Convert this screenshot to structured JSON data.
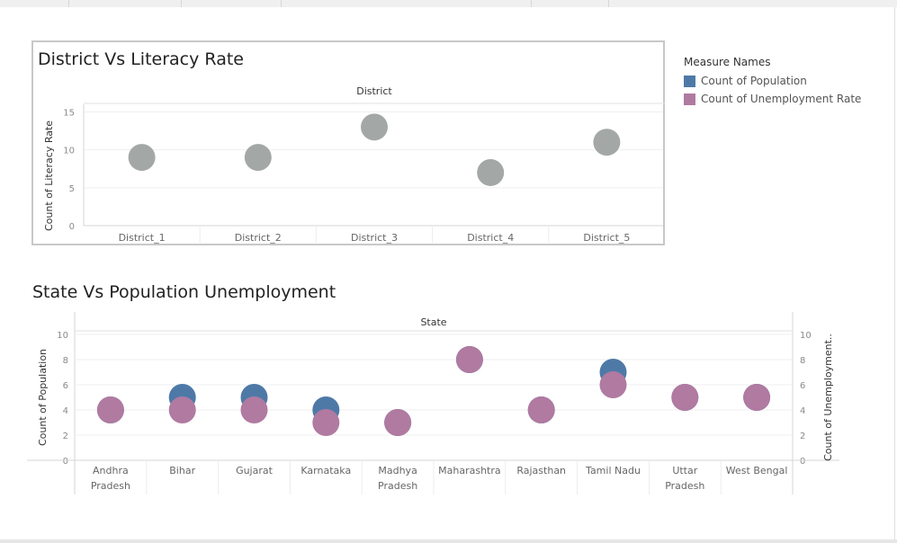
{
  "chart_data": [
    {
      "type": "scatter",
      "title": "District  Vs  Literacy Rate",
      "header": "District",
      "ylabel": "Count of Literacy Rate",
      "categories": [
        "District_1",
        "District_2",
        "District_3",
        "District_4",
        "District_5"
      ],
      "series": [
        {
          "values": [
            9,
            9,
            13,
            7,
            11
          ]
        }
      ],
      "ylim": [
        0,
        16
      ],
      "yticks": [
        0,
        5,
        10,
        15
      ],
      "colors": [
        "#a3a8a6"
      ]
    },
    {
      "type": "scatter",
      "title": "State Vs Population Unemployment",
      "header": "State",
      "ylabel_left": "Count of Population",
      "ylabel_right": "Count of Unemployment..",
      "categories": [
        "Andhra\nPradesh",
        "Bihar",
        "Gujarat",
        "Karnataka",
        "Madhya\nPradesh",
        "Maharashtra",
        "Rajasthan",
        "Tamil Nadu",
        "Uttar\nPradesh",
        "West Bengal"
      ],
      "series": [
        {
          "name": "Count of Population",
          "values": [
            4,
            5,
            5,
            4,
            3,
            8,
            4,
            7,
            5,
            5
          ],
          "color": "#4e79a7"
        },
        {
          "name": "Count of Unemployment Rate",
          "values": [
            4,
            4,
            4,
            3,
            3,
            8,
            4,
            6,
            5,
            5
          ],
          "color": "#b07aa1"
        }
      ],
      "ylim": [
        0,
        10
      ],
      "yticks": [
        0,
        2,
        4,
        6,
        8,
        10
      ]
    }
  ],
  "legend": {
    "title": "Measure Names",
    "items": [
      {
        "label": "Count of Population",
        "color": "#4e79a7"
      },
      {
        "label": "Count of Unemployment Rate",
        "color": "#b07aa1"
      }
    ]
  }
}
